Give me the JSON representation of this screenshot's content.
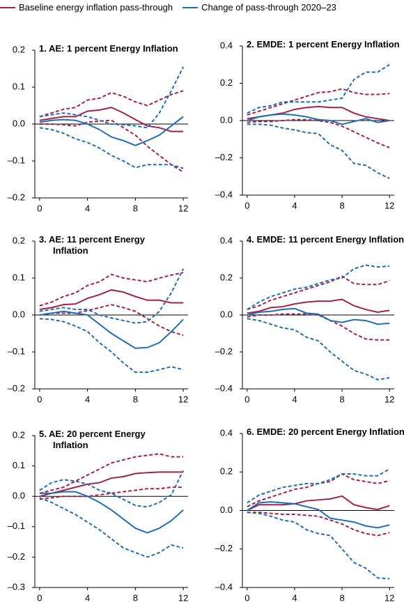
{
  "chart_data": [
    {
      "type": "line",
      "title": "1. AE: 1 percent Energy Inflation",
      "x": [
        0,
        1,
        2,
        3,
        4,
        5,
        6,
        7,
        8,
        9,
        10,
        11,
        12
      ],
      "xlim": [
        -0.4,
        12.4
      ],
      "xticks": [
        0,
        4,
        8,
        12
      ],
      "ylim": [
        -0.2,
        0.2
      ],
      "yticks": [
        {
          "value": -0.2,
          "label": "–0.2"
        },
        {
          "value": -0.1,
          "label": "–0.1"
        },
        {
          "value": 0,
          "label": "0.0"
        },
        0.1,
        0.2
      ],
      "series": [
        {
          "name": "Baseline energy inflation pass-through",
          "color": "#a3204c",
          "values": [
            0.01,
            0.015,
            0.02,
            0.02,
            0.035,
            0.038,
            0.045,
            0.03,
            0.012,
            -0.005,
            -0.01,
            -0.02,
            -0.02
          ],
          "upper": [
            0.02,
            0.03,
            0.04,
            0.045,
            0.065,
            0.07,
            0.085,
            0.075,
            0.06,
            0.05,
            0.065,
            0.08,
            0.09
          ],
          "lower": [
            0.0,
            0.0,
            -0.002,
            -0.005,
            0.005,
            0.008,
            0.01,
            -0.01,
            -0.03,
            -0.06,
            -0.085,
            -0.11,
            -0.13
          ]
        },
        {
          "name": "Change of pass-through 2020–23",
          "color": "#1f6db4",
          "values": [
            0.005,
            0.01,
            0.012,
            0.01,
            0.0,
            -0.015,
            -0.035,
            -0.045,
            -0.058,
            -0.045,
            -0.03,
            -0.005,
            0.02
          ],
          "upper": [
            0.02,
            0.025,
            0.03,
            0.025,
            0.02,
            0.01,
            0.0,
            -0.002,
            -0.005,
            -0.01,
            0.03,
            0.09,
            0.155
          ],
          "lower": [
            -0.01,
            -0.015,
            -0.025,
            -0.04,
            -0.05,
            -0.065,
            -0.085,
            -0.1,
            -0.118,
            -0.11,
            -0.11,
            -0.11,
            -0.12
          ]
        }
      ]
    },
    {
      "type": "line",
      "title": "2. EMDE: 1 percent Energy Inflation",
      "x": [
        0,
        1,
        2,
        3,
        4,
        5,
        6,
        7,
        8,
        9,
        10,
        11,
        12
      ],
      "xlim": [
        -0.4,
        12.4
      ],
      "xticks": [
        0,
        4,
        8,
        12
      ],
      "ylim": [
        -0.4,
        0.4
      ],
      "yticks": [
        {
          "value": -0.4,
          "label": "–0.4"
        },
        {
          "value": -0.2,
          "label": "–0.2"
        },
        {
          "value": 0,
          "label": "0.0"
        },
        0.2,
        0.4
      ],
      "series": [
        {
          "color": "#a3204c",
          "values": [
            0.01,
            0.02,
            0.03,
            0.04,
            0.06,
            0.07,
            0.075,
            0.07,
            0.07,
            0.04,
            0.02,
            0.01,
            0.0
          ],
          "upper": [
            0.03,
            0.05,
            0.07,
            0.09,
            0.11,
            0.13,
            0.15,
            0.155,
            0.17,
            0.15,
            0.14,
            0.14,
            0.145
          ],
          "lower": [
            -0.01,
            -0.005,
            -0.005,
            0.0,
            0.005,
            0.005,
            0.0,
            -0.01,
            -0.03,
            -0.06,
            -0.09,
            -0.12,
            -0.145
          ]
        },
        {
          "color": "#1f6db4",
          "values": [
            0.0,
            0.02,
            0.03,
            0.035,
            0.03,
            0.02,
            0.005,
            0.0,
            -0.02,
            -0.005,
            0.01,
            -0.01,
            0.0
          ],
          "upper": [
            0.04,
            0.07,
            0.08,
            0.1,
            0.1,
            0.1,
            0.1,
            0.11,
            0.12,
            0.22,
            0.26,
            0.26,
            0.3
          ],
          "lower": [
            -0.02,
            -0.02,
            -0.025,
            -0.04,
            -0.05,
            -0.065,
            -0.07,
            -0.13,
            -0.16,
            -0.23,
            -0.24,
            -0.28,
            -0.31
          ]
        }
      ]
    },
    {
      "type": "line",
      "title": "3. AE: 11 percent Energy Inflation",
      "x": [
        0,
        1,
        2,
        3,
        4,
        5,
        6,
        7,
        8,
        9,
        10,
        11,
        12
      ],
      "xlim": [
        -0.4,
        12.4
      ],
      "xticks": [
        0,
        4,
        8,
        12
      ],
      "ylim": [
        -0.2,
        0.2
      ],
      "yticks": [
        {
          "value": -0.2,
          "label": "–0.2"
        },
        {
          "value": -0.1,
          "label": "–0.1"
        },
        {
          "value": 0,
          "label": "0.0"
        },
        0.1,
        0.2
      ],
      "series": [
        {
          "color": "#a3204c",
          "values": [
            0.015,
            0.02,
            0.028,
            0.03,
            0.045,
            0.055,
            0.068,
            0.062,
            0.05,
            0.04,
            0.04,
            0.033,
            0.033
          ],
          "upper": [
            0.025,
            0.035,
            0.05,
            0.06,
            0.08,
            0.09,
            0.11,
            0.1,
            0.095,
            0.09,
            0.1,
            0.108,
            0.115
          ],
          "lower": [
            0.0,
            0.005,
            0.005,
            0.005,
            0.012,
            0.02,
            0.028,
            0.02,
            0.01,
            -0.01,
            -0.03,
            -0.045,
            -0.055
          ]
        },
        {
          "color": "#1f6db4",
          "values": [
            0.0,
            0.005,
            0.01,
            0.005,
            0.0,
            -0.025,
            -0.05,
            -0.07,
            -0.09,
            -0.088,
            -0.075,
            -0.045,
            -0.012
          ],
          "upper": [
            0.01,
            0.015,
            0.02,
            0.015,
            0.015,
            0.0,
            -0.008,
            -0.015,
            -0.022,
            -0.018,
            0.01,
            0.06,
            0.125
          ],
          "lower": [
            -0.01,
            -0.012,
            -0.018,
            -0.03,
            -0.045,
            -0.075,
            -0.1,
            -0.13,
            -0.155,
            -0.155,
            -0.148,
            -0.14,
            -0.148
          ]
        }
      ]
    },
    {
      "type": "line",
      "title": "4. EMDE: 11 percent Energy Inflation",
      "x": [
        0,
        1,
        2,
        3,
        4,
        5,
        6,
        7,
        8,
        9,
        10,
        11,
        12
      ],
      "xlim": [
        -0.4,
        12.4
      ],
      "xticks": [
        0,
        4,
        8,
        12
      ],
      "ylim": [
        -0.4,
        0.4
      ],
      "yticks": [
        {
          "value": -0.4,
          "label": "–0.4"
        },
        {
          "value": -0.2,
          "label": "–0.2"
        },
        {
          "value": 0,
          "label": "0.0"
        },
        0.2,
        0.4
      ],
      "series": [
        {
          "color": "#a3204c",
          "values": [
            0.01,
            0.02,
            0.04,
            0.045,
            0.06,
            0.07,
            0.075,
            0.075,
            0.085,
            0.05,
            0.03,
            0.015,
            0.025
          ],
          "upper": [
            0.03,
            0.05,
            0.08,
            0.1,
            0.12,
            0.14,
            0.16,
            0.18,
            0.21,
            0.17,
            0.165,
            0.165,
            0.185
          ],
          "lower": [
            -0.01,
            0.0,
            0.0,
            0.005,
            0.005,
            0.005,
            0.0,
            -0.03,
            -0.06,
            -0.1,
            -0.13,
            -0.135,
            -0.135
          ]
        },
        {
          "color": "#1f6db4",
          "values": [
            0.0,
            0.015,
            0.02,
            0.03,
            0.035,
            0.01,
            0.005,
            -0.03,
            -0.04,
            -0.025,
            -0.03,
            -0.05,
            -0.045
          ],
          "upper": [
            0.03,
            0.07,
            0.1,
            0.12,
            0.14,
            0.15,
            0.17,
            0.19,
            0.2,
            0.25,
            0.27,
            0.26,
            0.265
          ],
          "lower": [
            -0.02,
            -0.03,
            -0.05,
            -0.07,
            -0.08,
            -0.12,
            -0.14,
            -0.2,
            -0.25,
            -0.3,
            -0.32,
            -0.35,
            -0.34
          ]
        }
      ]
    },
    {
      "type": "line",
      "title": "5. AE: 20 percent Energy Inflation",
      "x": [
        0,
        1,
        2,
        3,
        4,
        5,
        6,
        7,
        8,
        9,
        10,
        11,
        12
      ],
      "xlim": [
        -0.4,
        12.4
      ],
      "xticks": [
        0,
        4,
        8,
        12
      ],
      "ylim": [
        -0.3,
        0.2
      ],
      "yticks": [
        {
          "value": -0.3,
          "label": "–0.3"
        },
        {
          "value": -0.2,
          "label": "–0.2"
        },
        {
          "value": -0.1,
          "label": "–0.1"
        },
        {
          "value": 0,
          "label": "0.0"
        },
        0.1,
        0.2
      ],
      "series": [
        {
          "color": "#a3204c",
          "values": [
            0.0,
            0.01,
            0.02,
            0.03,
            0.04,
            0.045,
            0.06,
            0.065,
            0.075,
            0.078,
            0.08,
            0.08,
            0.08
          ],
          "upper": [
            0.01,
            0.02,
            0.03,
            0.05,
            0.07,
            0.09,
            0.11,
            0.12,
            0.13,
            0.135,
            0.14,
            0.13,
            0.13
          ],
          "lower": [
            -0.01,
            -0.005,
            0.0,
            0.0,
            0.0,
            0.005,
            0.01,
            0.015,
            0.02,
            0.025,
            0.025,
            0.03,
            0.03
          ]
        },
        {
          "color": "#1f6db4",
          "values": [
            0.01,
            0.01,
            0.015,
            0.015,
            0.0,
            -0.02,
            -0.045,
            -0.075,
            -0.105,
            -0.12,
            -0.105,
            -0.08,
            -0.045
          ],
          "upper": [
            0.02,
            0.045,
            0.055,
            0.05,
            0.04,
            0.02,
            0.01,
            -0.01,
            -0.03,
            -0.035,
            -0.02,
            0.005,
            0.085
          ],
          "lower": [
            -0.005,
            -0.02,
            -0.04,
            -0.06,
            -0.085,
            -0.11,
            -0.14,
            -0.17,
            -0.185,
            -0.2,
            -0.185,
            -0.16,
            -0.17
          ]
        }
      ]
    },
    {
      "type": "line",
      "title": "6. EMDE: 20 percent Energy Inflation",
      "x": [
        0,
        1,
        2,
        3,
        4,
        5,
        6,
        7,
        8,
        9,
        10,
        11,
        12
      ],
      "xlim": [
        -0.4,
        12.4
      ],
      "xticks": [
        0,
        4,
        8,
        12
      ],
      "ylim": [
        -0.4,
        0.4
      ],
      "yticks": [
        {
          "value": -0.4,
          "label": "–0.4"
        },
        {
          "value": -0.2,
          "label": "–0.2"
        },
        {
          "value": 0,
          "label": "0.0"
        },
        0.2,
        0.4
      ],
      "series": [
        {
          "color": "#a3204c",
          "values": [
            0.0,
            0.03,
            0.03,
            0.03,
            0.035,
            0.05,
            0.055,
            0.06,
            0.075,
            0.03,
            0.015,
            0.005,
            0.025
          ],
          "upper": [
            0.02,
            0.05,
            0.07,
            0.09,
            0.11,
            0.12,
            0.14,
            0.15,
            0.19,
            0.16,
            0.15,
            0.14,
            0.155
          ],
          "lower": [
            -0.01,
            -0.01,
            -0.015,
            -0.02,
            -0.02,
            -0.025,
            -0.03,
            -0.05,
            -0.07,
            -0.1,
            -0.12,
            -0.13,
            -0.115
          ]
        },
        {
          "color": "#1f6db4",
          "values": [
            0.0,
            0.04,
            0.045,
            0.04,
            0.035,
            0.02,
            0.005,
            -0.04,
            -0.05,
            -0.06,
            -0.08,
            -0.09,
            -0.075
          ],
          "upper": [
            0.04,
            0.08,
            0.1,
            0.12,
            0.13,
            0.14,
            0.14,
            0.16,
            0.19,
            0.19,
            0.18,
            0.18,
            0.215
          ],
          "lower": [
            -0.01,
            -0.015,
            -0.03,
            -0.05,
            -0.06,
            -0.1,
            -0.12,
            -0.13,
            -0.2,
            -0.27,
            -0.3,
            -0.35,
            -0.355
          ]
        }
      ]
    }
  ]
}
